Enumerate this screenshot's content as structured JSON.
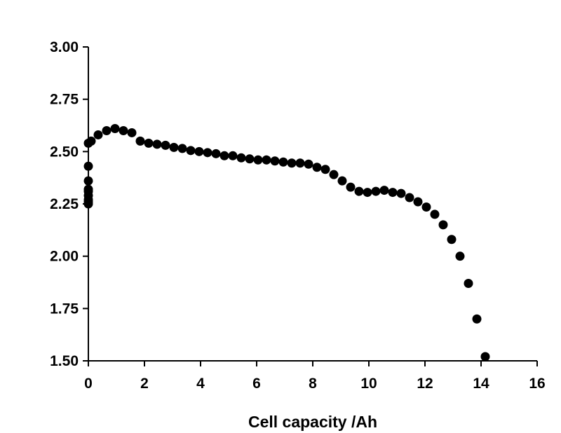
{
  "chart_data": {
    "type": "scatter",
    "title": "",
    "xlabel": "Cell capacity /Ah",
    "ylabel": "",
    "xlim": [
      0,
      16
    ],
    "ylim": [
      1.5,
      3.0
    ],
    "x_ticks": [
      0,
      2,
      4,
      6,
      8,
      10,
      12,
      14,
      16
    ],
    "y_ticks": [
      1.5,
      1.75,
      2.0,
      2.25,
      2.5,
      2.75,
      3.0
    ],
    "x_tick_labels": [
      "0",
      "2",
      "4",
      "6",
      "8",
      "10",
      "12",
      "14",
      "16"
    ],
    "y_tick_labels": [
      "1.50",
      "1.75",
      "2.00",
      "2.25",
      "2.50",
      "2.75",
      "3.00"
    ],
    "grid": false,
    "legend": "none",
    "marker_color": "#000000",
    "series": [
      {
        "x": [
          0,
          0,
          0,
          0,
          0,
          0,
          0,
          0,
          0,
          0.1,
          0.35,
          0.65,
          0.95,
          1.25,
          1.55,
          1.85,
          2.15,
          2.45,
          2.75,
          3.05,
          3.35,
          3.65,
          3.95,
          4.25,
          4.55,
          4.85,
          5.15,
          5.45,
          5.75,
          6.05,
          6.35,
          6.65,
          6.95,
          7.25,
          7.55,
          7.85,
          8.15,
          8.45,
          8.75,
          9.05,
          9.35,
          9.65,
          9.95,
          10.25,
          10.55,
          10.85,
          11.15,
          11.45,
          11.75,
          12.05,
          12.35,
          12.65,
          12.95,
          13.25,
          13.55,
          13.85,
          14.15
        ],
        "y": [
          2.25,
          2.26,
          2.27,
          2.29,
          2.31,
          2.32,
          2.36,
          2.43,
          2.54,
          2.55,
          2.58,
          2.6,
          2.61,
          2.6,
          2.59,
          2.55,
          2.54,
          2.535,
          2.53,
          2.52,
          2.515,
          2.505,
          2.5,
          2.495,
          2.49,
          2.48,
          2.48,
          2.47,
          2.465,
          2.46,
          2.46,
          2.455,
          2.45,
          2.445,
          2.445,
          2.44,
          2.425,
          2.415,
          2.39,
          2.36,
          2.33,
          2.31,
          2.305,
          2.31,
          2.315,
          2.305,
          2.3,
          2.28,
          2.26,
          2.235,
          2.2,
          2.15,
          2.08,
          2.0,
          1.87,
          1.7,
          1.52
        ]
      }
    ]
  }
}
